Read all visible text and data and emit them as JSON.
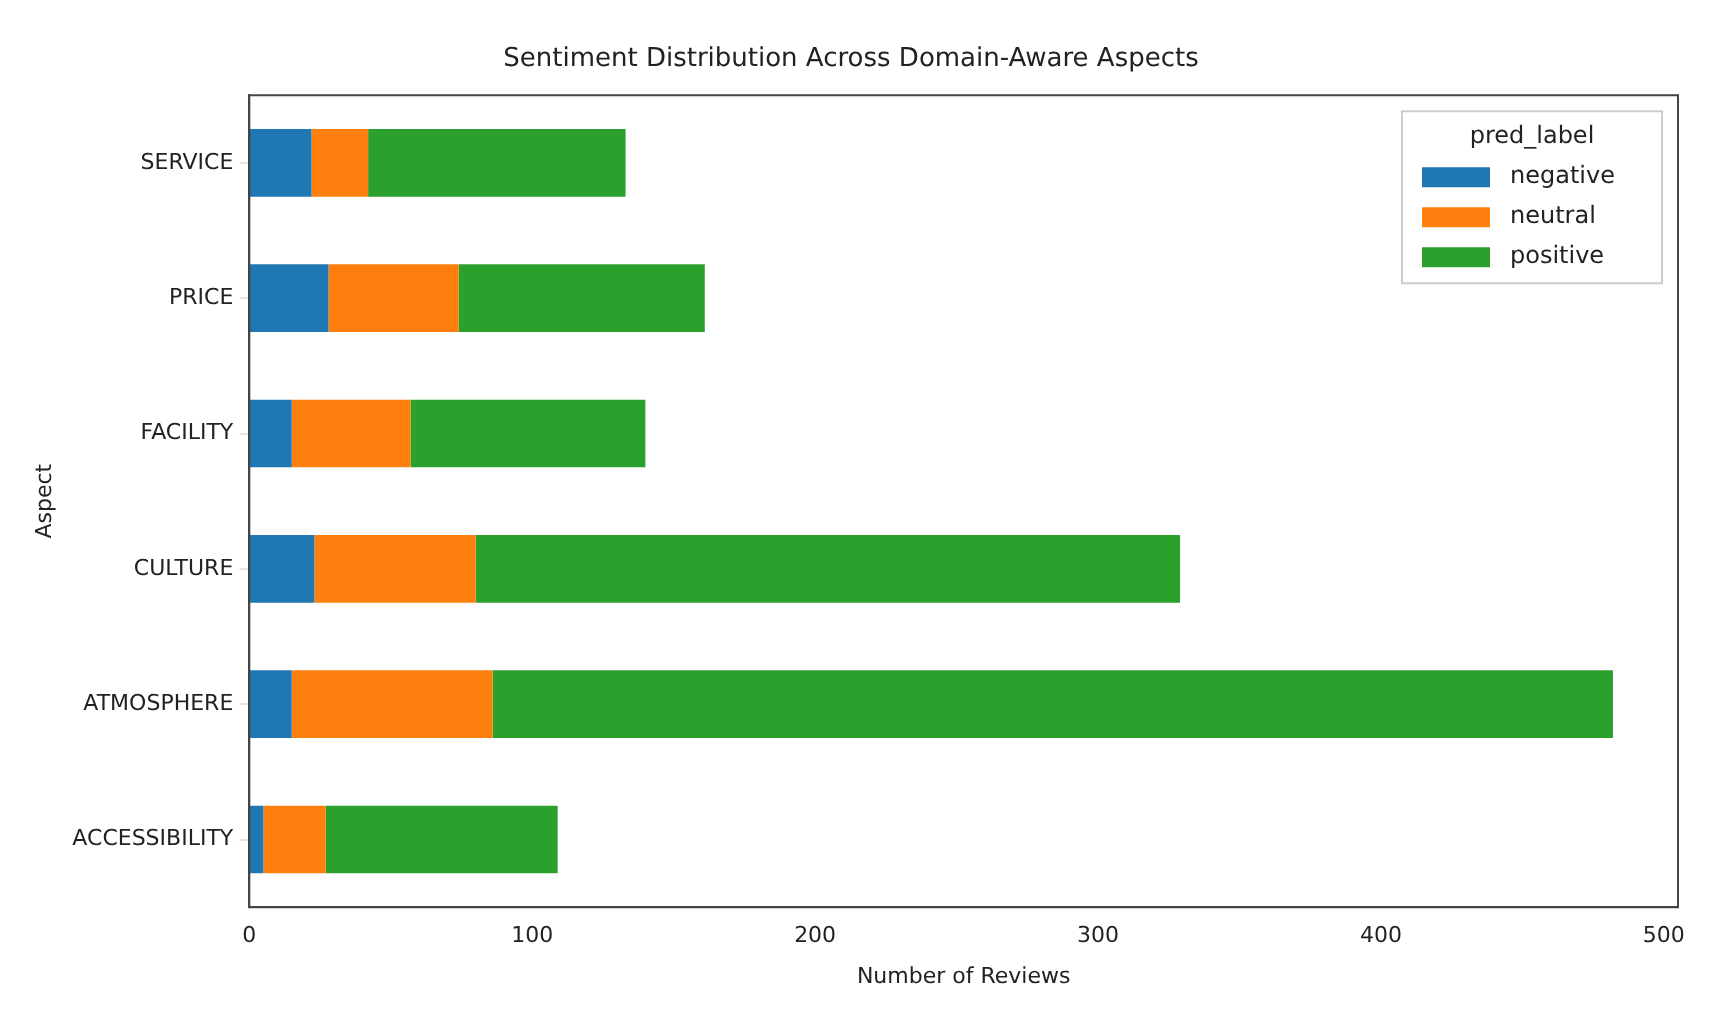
{
  "chart_data": {
    "type": "bar",
    "orientation": "horizontal",
    "stacked": true,
    "title": "Sentiment Distribution Across Domain-Aware Aspects",
    "xlabel": "Number of Reviews",
    "ylabel": "Aspect",
    "legend_title": "pred_label",
    "legend": "top right",
    "grid": false,
    "categories": [
      "SERVICE",
      "PRICE",
      "FACILITY",
      "CULTURE",
      "ATMOSPHERE",
      "ACCESSIBILITY"
    ],
    "series": [
      {
        "name": "negative",
        "color": "#1f77b4",
        "values": [
          22,
          28,
          15,
          23,
          15,
          5
        ]
      },
      {
        "name": "neutral",
        "color": "#ff7f0e",
        "values": [
          20,
          46,
          42,
          57,
          71,
          22
        ]
      },
      {
        "name": "positive",
        "color": "#2ca02c",
        "values": [
          91,
          87,
          83,
          249,
          396,
          82
        ]
      }
    ],
    "xlim": [
      0,
      505
    ],
    "xticks": [
      0,
      100,
      200,
      300,
      400,
      500
    ]
  }
}
